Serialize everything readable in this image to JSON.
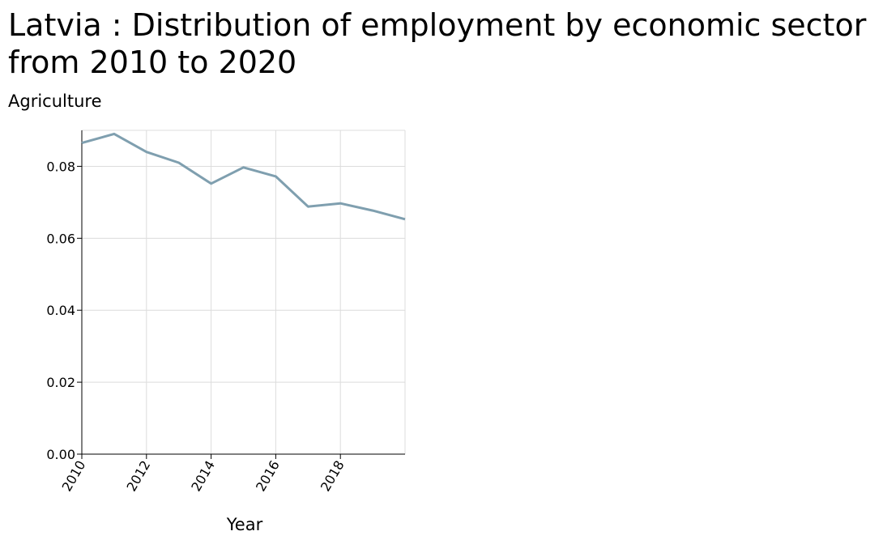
{
  "chart_data": {
    "type": "line",
    "title": "Latvia : Distribution of employment by economic sector from 2010 to 2020",
    "ylabel": "Agriculture",
    "xlabel": "Year",
    "xlim": [
      2010,
      2020
    ],
    "ylim": [
      0,
      0.09
    ],
    "x_ticks": [
      "2010",
      "2012",
      "2014",
      "2016",
      "2018"
    ],
    "y_ticks": [
      "0.00",
      "0.02",
      "0.04",
      "0.06",
      "0.08"
    ],
    "grid": true,
    "line_color": "#7f9faf",
    "series": [
      {
        "x": [
          2010,
          2011,
          2012,
          2013,
          2014,
          2015,
          2016,
          2017,
          2018,
          2019,
          2020
        ],
        "values": [
          0.0865,
          0.089,
          0.084,
          0.081,
          0.0752,
          0.0797,
          0.0772,
          0.0688,
          0.0697,
          0.0677,
          0.0653
        ]
      }
    ]
  }
}
